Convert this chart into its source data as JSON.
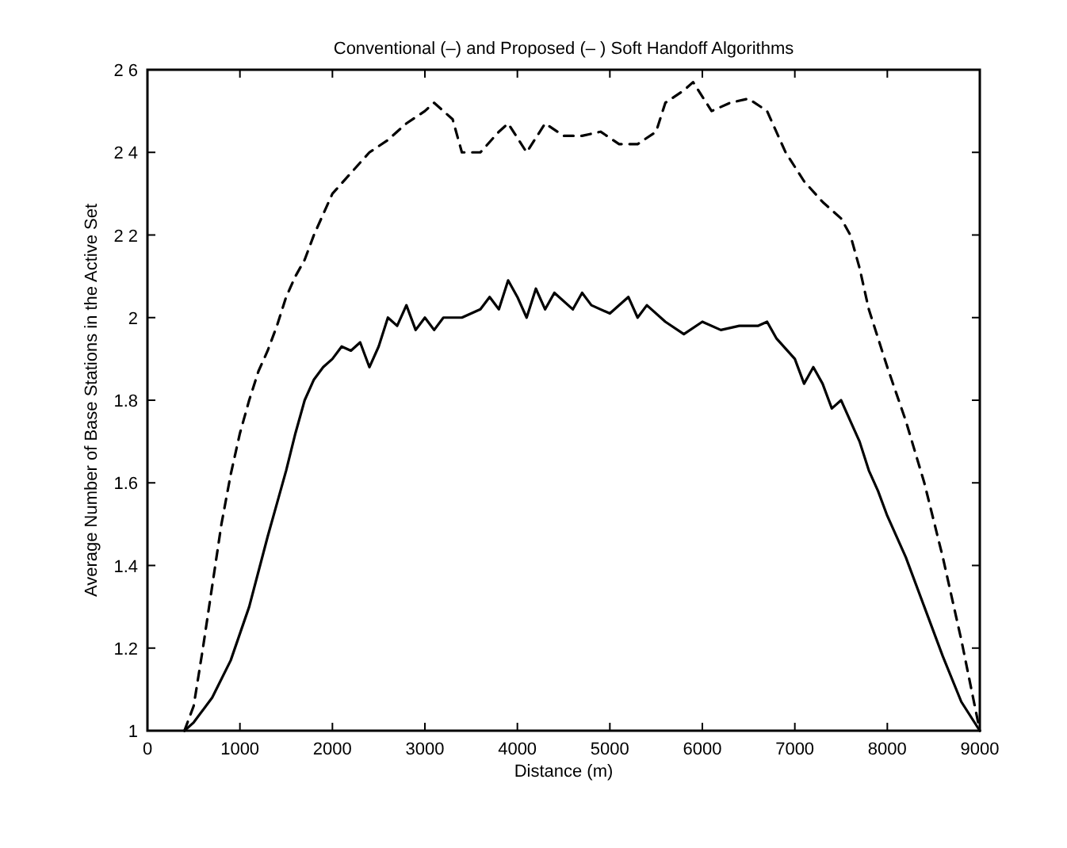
{
  "chart_data": {
    "type": "line",
    "title": "Conventional (–) and Proposed (– ) Soft Handoff Algorithms",
    "xlabel": "Distance (m)",
    "ylabel": "Average Number of Base Stations in the Active Set",
    "xlim": [
      0,
      9000
    ],
    "xticks": [
      0,
      1000,
      2000,
      3000,
      4000,
      5000,
      6000,
      7000,
      8000,
      9000
    ],
    "ylim": [
      1,
      2.6
    ],
    "yticks": [
      1,
      {
        "value": 1.2,
        "label": "1.2"
      },
      {
        "value": 1.4,
        "label": "1.4"
      },
      {
        "value": 1.6,
        "label": "1.6"
      },
      {
        "value": 1.8,
        "label": "1.8"
      },
      2,
      {
        "value": 2.2,
        "label": "2 2"
      },
      {
        "value": 2.4,
        "label": "2 4"
      },
      {
        "value": 2.6,
        "label": "2 6"
      }
    ],
    "grid": false,
    "marker": "none",
    "series": [
      {
        "color": "#000000",
        "line_style": "solid",
        "x": [
          400,
          500,
          700,
          900,
          1100,
          1300,
          1400,
          1500,
          1600,
          1700,
          1800,
          1900,
          2000,
          2100,
          2200,
          2300,
          2400,
          2500,
          2600,
          2700,
          2800,
          2900,
          3000,
          3100,
          3200,
          3400,
          3600,
          3700,
          3800,
          3900,
          4000,
          4100,
          4200,
          4300,
          4400,
          4600,
          4700,
          4800,
          5000,
          5200,
          5300,
          5400,
          5600,
          5800,
          6000,
          6200,
          6400,
          6600,
          6700,
          6800,
          7000,
          7100,
          7200,
          7300,
          7400,
          7500,
          7600,
          7700,
          7800,
          7900,
          8000,
          8200,
          8400,
          8600,
          8800,
          9000
        ],
        "values": [
          1.0,
          1.02,
          1.08,
          1.17,
          1.3,
          1.47,
          1.55,
          1.63,
          1.72,
          1.8,
          1.85,
          1.88,
          1.9,
          1.93,
          1.92,
          1.94,
          1.88,
          1.93,
          2.0,
          1.98,
          2.03,
          1.97,
          2.0,
          1.97,
          2.0,
          2.0,
          2.02,
          2.05,
          2.02,
          2.09,
          2.05,
          2.0,
          2.07,
          2.02,
          2.06,
          2.02,
          2.06,
          2.03,
          2.01,
          2.05,
          2.0,
          2.03,
          1.99,
          1.96,
          1.99,
          1.97,
          1.98,
          1.98,
          1.99,
          1.95,
          1.9,
          1.84,
          1.88,
          1.84,
          1.78,
          1.8,
          1.75,
          1.7,
          1.63,
          1.58,
          1.52,
          1.42,
          1.3,
          1.18,
          1.07,
          1.0
        ]
      },
      {
        "color": "#000000",
        "line_style": "dashed",
        "x": [
          400,
          500,
          600,
          700,
          800,
          900,
          1000,
          1100,
          1200,
          1300,
          1400,
          1500,
          1600,
          1700,
          1800,
          1900,
          2000,
          2200,
          2400,
          2600,
          2800,
          3000,
          3100,
          3300,
          3400,
          3600,
          3800,
          3900,
          4100,
          4300,
          4500,
          4700,
          4900,
          5100,
          5300,
          5500,
          5600,
          5800,
          5900,
          6100,
          6300,
          6500,
          6700,
          6900,
          7100,
          7300,
          7500,
          7600,
          7700,
          7800,
          7900,
          8000,
          8200,
          8400,
          8600,
          8800,
          9000
        ],
        "values": [
          1.0,
          1.06,
          1.2,
          1.35,
          1.5,
          1.62,
          1.72,
          1.8,
          1.87,
          1.92,
          1.98,
          2.05,
          2.1,
          2.14,
          2.2,
          2.25,
          2.3,
          2.35,
          2.4,
          2.43,
          2.47,
          2.5,
          2.52,
          2.48,
          2.4,
          2.4,
          2.45,
          2.47,
          2.4,
          2.47,
          2.44,
          2.44,
          2.45,
          2.42,
          2.42,
          2.45,
          2.52,
          2.55,
          2.57,
          2.5,
          2.52,
          2.53,
          2.5,
          2.4,
          2.33,
          2.28,
          2.24,
          2.2,
          2.12,
          2.02,
          1.95,
          1.88,
          1.75,
          1.6,
          1.42,
          1.22,
          1.0
        ]
      }
    ]
  }
}
